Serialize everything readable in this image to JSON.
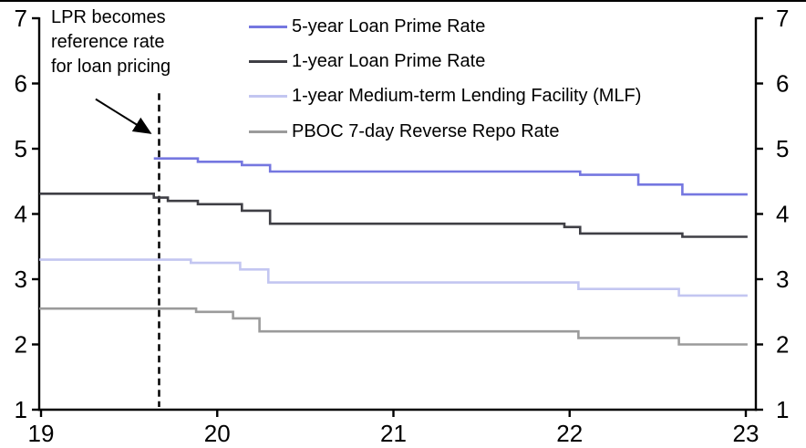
{
  "chart_data": {
    "type": "line",
    "step": true,
    "title": "",
    "xlabel": "",
    "ylabel": "",
    "xlim": [
      19,
      23
    ],
    "ylim": [
      1,
      7
    ],
    "x_ticks": [
      "19",
      "20",
      "21",
      "22",
      "23"
    ],
    "y_ticks": [
      "1",
      "2",
      "3",
      "4",
      "5",
      "6",
      "7"
    ],
    "y_axis_sides": "both",
    "grid": false,
    "legend_position": "top-center",
    "x_end": 23.01,
    "series": [
      {
        "name": "5-year Loan Prime Rate",
        "color": "#7577E0",
        "points": [
          [
            19.64,
            4.85
          ],
          [
            19.89,
            4.8
          ],
          [
            20.14,
            4.75
          ],
          [
            20.3,
            4.65
          ],
          [
            22.06,
            4.6
          ],
          [
            22.39,
            4.45
          ],
          [
            22.64,
            4.3
          ]
        ]
      },
      {
        "name": "1-year Loan Prime Rate",
        "color": "#3F3F45",
        "points": [
          [
            18.99,
            4.31
          ],
          [
            19.64,
            4.25
          ],
          [
            19.72,
            4.2
          ],
          [
            19.89,
            4.15
          ],
          [
            20.14,
            4.05
          ],
          [
            20.3,
            3.85
          ],
          [
            21.97,
            3.8
          ],
          [
            22.06,
            3.7
          ],
          [
            22.64,
            3.65
          ]
        ]
      },
      {
        "name": "1-year Medium-term Lending Facility (MLF)",
        "color": "#C3C6F1",
        "points": [
          [
            18.99,
            3.3
          ],
          [
            19.85,
            3.25
          ],
          [
            20.13,
            3.15
          ],
          [
            20.29,
            2.95
          ],
          [
            22.05,
            2.85
          ],
          [
            22.62,
            2.75
          ]
        ]
      },
      {
        "name": "PBOC 7-day Reverse Repo Rate",
        "color": "#9B9B9B",
        "points": [
          [
            18.99,
            2.55
          ],
          [
            19.88,
            2.5
          ],
          [
            20.09,
            2.4
          ],
          [
            20.24,
            2.2
          ],
          [
            22.05,
            2.1
          ],
          [
            22.62,
            2.0
          ]
        ]
      }
    ],
    "event_line": {
      "x": 19.67,
      "y_top": 5.85,
      "style": "dashed",
      "color": "#000000"
    },
    "annotation": {
      "lines": [
        "LPR becomes",
        "reference rate",
        "for loan pricing"
      ],
      "arrow": {
        "from": [
          19.31,
          5.76
        ],
        "to": [
          19.62,
          5.24
        ]
      }
    }
  },
  "axis_color": "#000000",
  "background": "#FFFFFF"
}
